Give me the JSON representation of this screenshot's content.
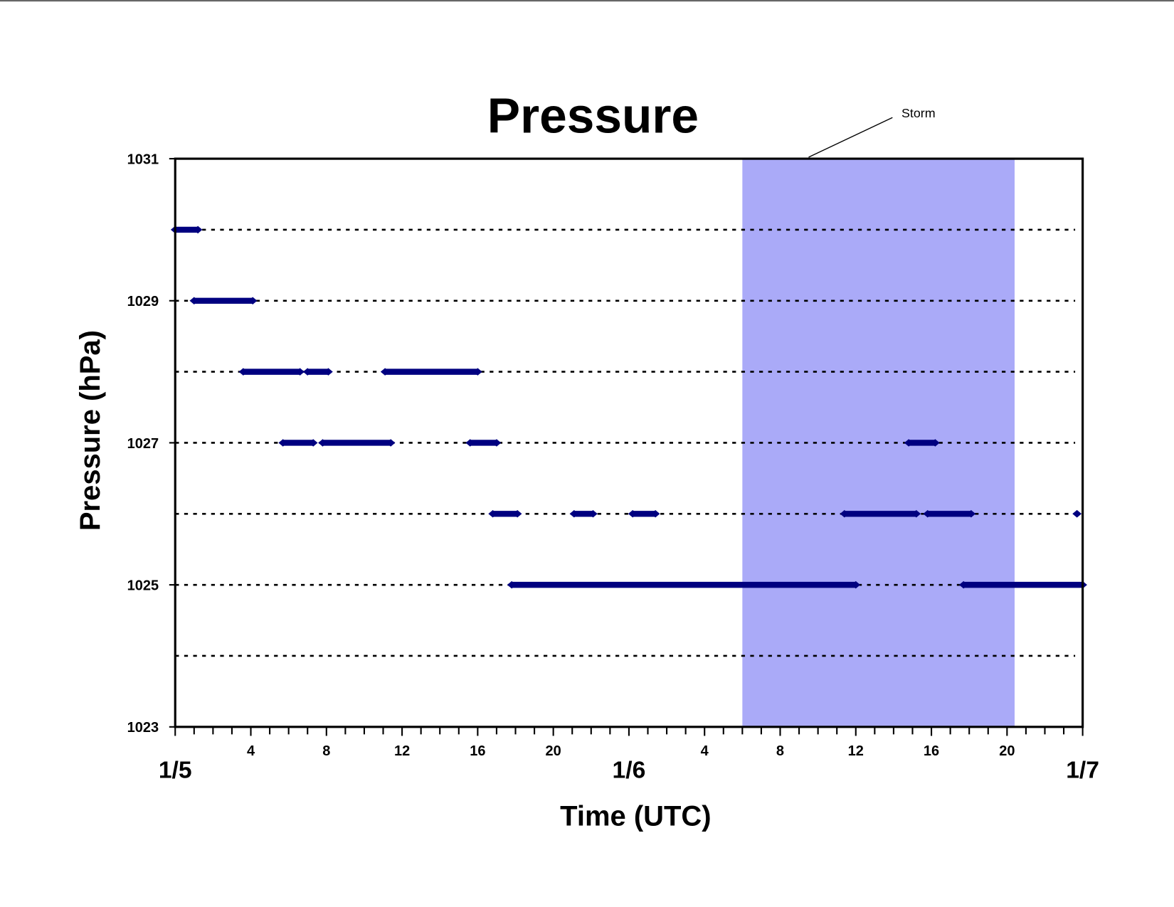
{
  "chart_data": {
    "type": "scatter",
    "title": "Pressure",
    "x_label": "Time (UTC)",
    "y_label": "Pressure (hPa)",
    "color": "#000080",
    "xlim": [
      0,
      48
    ],
    "ylim": [
      1023,
      1031
    ],
    "yticks": [
      1023,
      1025,
      1027,
      1029,
      1031
    ],
    "ygrid": [
      1024,
      1025,
      1026,
      1027,
      1028,
      1029,
      1030
    ],
    "xticks": [
      {
        "value": 0,
        "label": "1/5"
      },
      4,
      8,
      12,
      16,
      20,
      {
        "value": 24,
        "label": "1/6"
      },
      {
        "value": 28,
        "label": "4"
      },
      {
        "value": 32,
        "label": "8"
      },
      {
        "value": 36,
        "label": "12"
      },
      {
        "value": 40,
        "label": "16"
      },
      {
        "value": 44,
        "label": "20"
      },
      {
        "value": 48,
        "label": "1/7"
      }
    ],
    "xminorticks": [
      1,
      2,
      3,
      5,
      6,
      7,
      9,
      10,
      11,
      13,
      14,
      15,
      17,
      18,
      19,
      21,
      22,
      23,
      25,
      26,
      27,
      29,
      30,
      31,
      33,
      34,
      35,
      37,
      38,
      39,
      41,
      42,
      43,
      45,
      46,
      47
    ],
    "shaded_region": {
      "label": "Storm",
      "x": [
        30,
        44.4
      ],
      "color": "#aaaaf8"
    },
    "runs": [
      {
        "x": [
          0,
          1.2
        ],
        "y": 1030
      },
      {
        "x": [
          1.0,
          4.1
        ],
        "y": 1029
      },
      {
        "x": [
          3.6,
          6.6
        ],
        "y": 1028
      },
      {
        "x": [
          7.0,
          8.1
        ],
        "y": 1028
      },
      {
        "x": [
          11.1,
          16.0
        ],
        "y": 1028
      },
      {
        "x": [
          5.7,
          7.3
        ],
        "y": 1027
      },
      {
        "x": [
          7.8,
          11.4
        ],
        "y": 1027
      },
      {
        "x": [
          15.6,
          17.0
        ],
        "y": 1027
      },
      {
        "x": [
          38.8,
          40.2
        ],
        "y": 1027
      },
      {
        "x": [
          16.8,
          18.1
        ],
        "y": 1026
      },
      {
        "x": [
          21.1,
          22.1
        ],
        "y": 1026
      },
      {
        "x": [
          24.2,
          25.4
        ],
        "y": 1026
      },
      {
        "x": [
          35.4,
          39.2
        ],
        "y": 1026
      },
      {
        "x": [
          39.8,
          42.1
        ],
        "y": 1026
      },
      {
        "x": [
          47.7,
          47.7
        ],
        "y": 1026
      },
      {
        "x": [
          17.8,
          36.0
        ],
        "y": 1025
      },
      {
        "x": [
          41.7,
          48.0
        ],
        "y": 1025
      }
    ]
  }
}
